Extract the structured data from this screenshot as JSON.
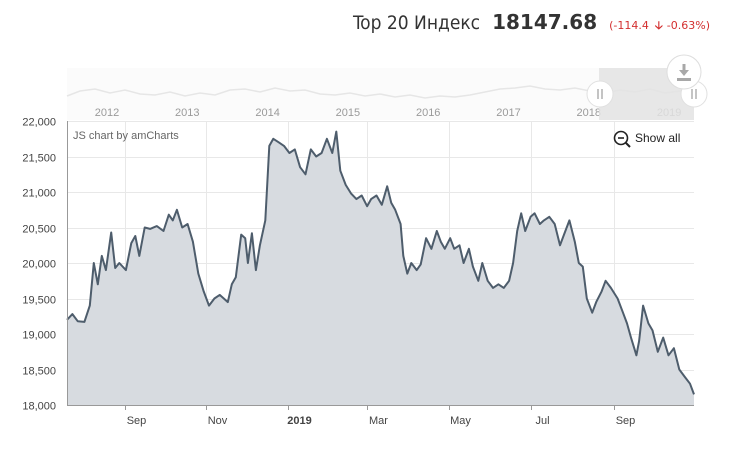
{
  "header": {
    "title": "Top 20 Индекс",
    "value": "18147.68",
    "change_paren_open": "(",
    "change_abs": "-114.4",
    "change_arrow": "🡣",
    "change_pct": "-0.63%",
    "change_paren_close": ")"
  },
  "credit": "JS chart by amCharts",
  "show_all_label": "Show all",
  "colors": {
    "line": "#4e5d6c",
    "fill": "#d7dbe0",
    "grid": "#e8e8e8",
    "axis_text": "#555555",
    "change": "#d32f2f"
  },
  "icons": {
    "zoom_out": "magnifier-minus-icon",
    "download": "download-icon",
    "grip": "scrollbar-grip-icon"
  },
  "navigator": {
    "years": [
      "2012",
      "2013",
      "2014",
      "2015",
      "2016",
      "2017",
      "2018",
      "2019"
    ]
  },
  "chart_data": {
    "type": "area",
    "title": "",
    "xlabel": "",
    "ylabel": "",
    "ylim": [
      18000,
      22000
    ],
    "y_ticks": [
      "18,000",
      "18,500",
      "19,000",
      "19,500",
      "20,000",
      "20,500",
      "21,000",
      "21,500",
      "22,000"
    ],
    "x_range": [
      "2018-07-20",
      "2019-10-31"
    ],
    "x_ticks": [
      {
        "date": "2018-09-01",
        "label": "Sep",
        "bold": false
      },
      {
        "date": "2018-11-01",
        "label": "Nov",
        "bold": false
      },
      {
        "date": "2019-01-01",
        "label": "2019",
        "bold": true
      },
      {
        "date": "2019-03-01",
        "label": "Mar",
        "bold": false
      },
      {
        "date": "2019-05-01",
        "label": "May",
        "bold": false
      },
      {
        "date": "2019-07-01",
        "label": "Jul",
        "bold": false
      },
      {
        "date": "2019-09-01",
        "label": "Sep",
        "bold": false
      }
    ],
    "grid": true,
    "series": [
      {
        "values": [
          [
            "2018-07-20",
            19200
          ],
          [
            "2018-07-24",
            19280
          ],
          [
            "2018-07-28",
            19180
          ],
          [
            "2018-08-02",
            19170
          ],
          [
            "2018-08-06",
            19400
          ],
          [
            "2018-08-09",
            20000
          ],
          [
            "2018-08-12",
            19700
          ],
          [
            "2018-08-15",
            20100
          ],
          [
            "2018-08-18",
            19900
          ],
          [
            "2018-08-22",
            20430
          ],
          [
            "2018-08-25",
            19930
          ],
          [
            "2018-08-28",
            20000
          ],
          [
            "2018-09-02",
            19900
          ],
          [
            "2018-09-06",
            20280
          ],
          [
            "2018-09-09",
            20380
          ],
          [
            "2018-09-12",
            20100
          ],
          [
            "2018-09-16",
            20500
          ],
          [
            "2018-09-20",
            20480
          ],
          [
            "2018-09-25",
            20520
          ],
          [
            "2018-09-30",
            20450
          ],
          [
            "2018-10-04",
            20680
          ],
          [
            "2018-10-07",
            20600
          ],
          [
            "2018-10-10",
            20750
          ],
          [
            "2018-10-14",
            20500
          ],
          [
            "2018-10-18",
            20550
          ],
          [
            "2018-10-22",
            20300
          ],
          [
            "2018-10-26",
            19850
          ],
          [
            "2018-10-30",
            19600
          ],
          [
            "2018-11-03",
            19400
          ],
          [
            "2018-11-07",
            19500
          ],
          [
            "2018-11-11",
            19550
          ],
          [
            "2018-11-14",
            19500
          ],
          [
            "2018-11-17",
            19450
          ],
          [
            "2018-11-20",
            19700
          ],
          [
            "2018-11-23",
            19800
          ],
          [
            "2018-11-27",
            20400
          ],
          [
            "2018-11-30",
            20350
          ],
          [
            "2018-12-02",
            20000
          ],
          [
            "2018-12-05",
            20420
          ],
          [
            "2018-12-08",
            19900
          ],
          [
            "2018-12-11",
            20250
          ],
          [
            "2018-12-15",
            20600
          ],
          [
            "2018-12-18",
            21650
          ],
          [
            "2018-12-21",
            21750
          ],
          [
            "2018-12-25",
            21700
          ],
          [
            "2018-12-29",
            21650
          ],
          [
            "2019-01-02",
            21550
          ],
          [
            "2019-01-06",
            21600
          ],
          [
            "2019-01-10",
            21350
          ],
          [
            "2019-01-14",
            21250
          ],
          [
            "2019-01-18",
            21600
          ],
          [
            "2019-01-22",
            21500
          ],
          [
            "2019-01-26",
            21550
          ],
          [
            "2019-01-30",
            21750
          ],
          [
            "2019-02-03",
            21550
          ],
          [
            "2019-02-06",
            21850
          ],
          [
            "2019-02-09",
            21300
          ],
          [
            "2019-02-13",
            21100
          ],
          [
            "2019-02-17",
            20980
          ],
          [
            "2019-02-21",
            20900
          ],
          [
            "2019-02-25",
            20950
          ],
          [
            "2019-03-01",
            20800
          ],
          [
            "2019-03-04",
            20900
          ],
          [
            "2019-03-08",
            20950
          ],
          [
            "2019-03-12",
            20820
          ],
          [
            "2019-03-16",
            21080
          ],
          [
            "2019-03-19",
            20850
          ],
          [
            "2019-03-22",
            20750
          ],
          [
            "2019-03-26",
            20550
          ],
          [
            "2019-03-28",
            20100
          ],
          [
            "2019-03-31",
            19850
          ],
          [
            "2019-04-03",
            20000
          ],
          [
            "2019-04-07",
            19900
          ],
          [
            "2019-04-10",
            19980
          ],
          [
            "2019-04-14",
            20350
          ],
          [
            "2019-04-18",
            20200
          ],
          [
            "2019-04-22",
            20450
          ],
          [
            "2019-04-25",
            20300
          ],
          [
            "2019-04-28",
            20200
          ],
          [
            "2019-05-02",
            20350
          ],
          [
            "2019-05-05",
            20200
          ],
          [
            "2019-05-09",
            20250
          ],
          [
            "2019-05-12",
            20000
          ],
          [
            "2019-05-16",
            20200
          ],
          [
            "2019-05-19",
            19950
          ],
          [
            "2019-05-23",
            19750
          ],
          [
            "2019-05-26",
            20000
          ],
          [
            "2019-05-30",
            19750
          ],
          [
            "2019-06-03",
            19650
          ],
          [
            "2019-06-07",
            19700
          ],
          [
            "2019-06-11",
            19650
          ],
          [
            "2019-06-15",
            19750
          ],
          [
            "2019-06-18",
            20000
          ],
          [
            "2019-06-21",
            20450
          ],
          [
            "2019-06-24",
            20700
          ],
          [
            "2019-06-27",
            20450
          ],
          [
            "2019-07-01",
            20650
          ],
          [
            "2019-07-04",
            20700
          ],
          [
            "2019-07-08",
            20550
          ],
          [
            "2019-07-11",
            20600
          ],
          [
            "2019-07-15",
            20650
          ],
          [
            "2019-07-19",
            20550
          ],
          [
            "2019-07-23",
            20250
          ],
          [
            "2019-07-26",
            20400
          ],
          [
            "2019-07-30",
            20600
          ],
          [
            "2019-08-03",
            20300
          ],
          [
            "2019-08-06",
            20000
          ],
          [
            "2019-08-09",
            19950
          ],
          [
            "2019-08-12",
            19500
          ],
          [
            "2019-08-16",
            19300
          ],
          [
            "2019-08-19",
            19450
          ],
          [
            "2019-08-23",
            19600
          ],
          [
            "2019-08-26",
            19750
          ],
          [
            "2019-08-30",
            19650
          ],
          [
            "2019-09-04",
            19500
          ],
          [
            "2019-09-08",
            19300
          ],
          [
            "2019-09-11",
            19150
          ],
          [
            "2019-09-14",
            18950
          ],
          [
            "2019-09-18",
            18700
          ],
          [
            "2019-09-20",
            18900
          ],
          [
            "2019-09-23",
            19400
          ],
          [
            "2019-09-27",
            19150
          ],
          [
            "2019-09-30",
            19050
          ],
          [
            "2019-10-04",
            18750
          ],
          [
            "2019-10-08",
            18950
          ],
          [
            "2019-10-12",
            18700
          ],
          [
            "2019-10-16",
            18800
          ],
          [
            "2019-10-20",
            18500
          ],
          [
            "2019-10-24",
            18400
          ],
          [
            "2019-10-28",
            18300
          ],
          [
            "2019-10-31",
            18150
          ]
        ]
      }
    ]
  }
}
